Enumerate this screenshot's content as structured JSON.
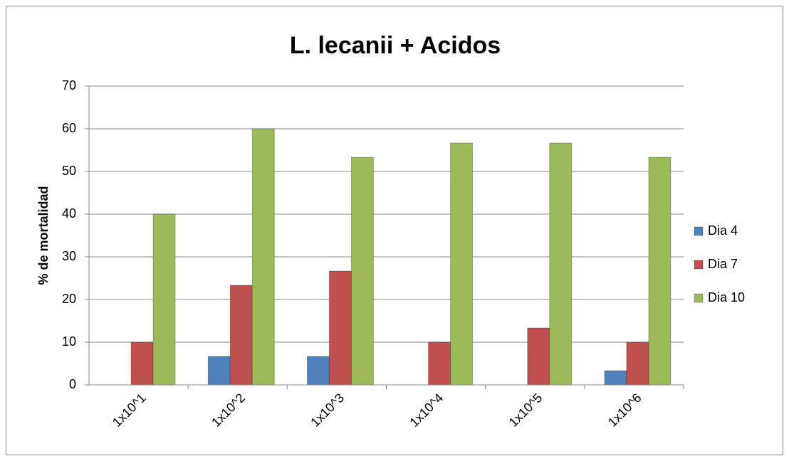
{
  "chart_data": {
    "type": "bar",
    "title": "L. lecanii  + Acidos",
    "y_label": "% de mortalidad",
    "categories": [
      "1x10^1",
      "1x10^2",
      "1x10^3",
      "1x10^4",
      "1x10^5",
      "1x10^6"
    ],
    "series": [
      {
        "name": "Dia 4",
        "color": "#4f81bd",
        "values": [
          0,
          6.67,
          6.67,
          0,
          0,
          3.33
        ]
      },
      {
        "name": "Dia 7",
        "color": "#c0504d",
        "values": [
          10,
          23.33,
          26.67,
          10,
          13.33,
          10
        ]
      },
      {
        "name": "Dia 10",
        "color": "#9bbb59",
        "values": [
          40,
          60,
          53.33,
          56.67,
          56.67,
          53.33
        ]
      }
    ],
    "ylim": [
      0,
      70
    ],
    "yticks": [
      0,
      10,
      20,
      30,
      40,
      50,
      60,
      70
    ],
    "grid": true,
    "legend": "right"
  }
}
